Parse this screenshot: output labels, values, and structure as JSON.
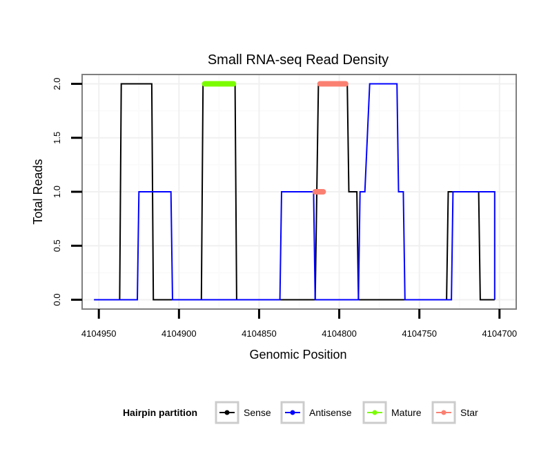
{
  "chart_data": {
    "type": "line",
    "title": "Small RNA-seq Read Density",
    "xlabel": "Genomic Position",
    "ylabel": "Total Reads",
    "x_reversed": true,
    "xlim": [
      4104960,
      4104690
    ],
    "ylim": [
      -0.08,
      2.08
    ],
    "x_ticks": [
      4104950,
      4104900,
      4104850,
      4104800,
      4104750,
      4104700
    ],
    "x_tick_labels": [
      "4104950",
      "4104900",
      "4104850",
      "4104800",
      "4104750",
      "4104700"
    ],
    "y_ticks": [
      0.0,
      0.5,
      1.0,
      1.5,
      2.0
    ],
    "y_tick_labels": [
      "0.0",
      "0.5",
      "1.0",
      "1.5",
      "2.0"
    ],
    "grid": true,
    "series": [
      {
        "name": "Sense",
        "color": "#000000",
        "points": [
          [
            4104953,
            0
          ],
          [
            4104937,
            0
          ],
          [
            4104936,
            2
          ],
          [
            4104917,
            2
          ],
          [
            4104916,
            0
          ],
          [
            4104886,
            0
          ],
          [
            4104885,
            2
          ],
          [
            4104865,
            2
          ],
          [
            4104864,
            0
          ],
          [
            4104815,
            0
          ],
          [
            4104813,
            2
          ],
          [
            4104795,
            2
          ],
          [
            4104794,
            1
          ],
          [
            4104789,
            1
          ],
          [
            4104788,
            0
          ],
          [
            4104733,
            0
          ],
          [
            4104732,
            1
          ],
          [
            4104713,
            1
          ],
          [
            4104712,
            0
          ],
          [
            4104703,
            0
          ]
        ]
      },
      {
        "name": "Antisense",
        "color": "#0000ff",
        "points": [
          [
            4104953,
            0
          ],
          [
            4104926,
            0
          ],
          [
            4104925,
            1
          ],
          [
            4104905,
            1
          ],
          [
            4104904,
            0
          ],
          [
            4104837,
            0
          ],
          [
            4104836,
            1
          ],
          [
            4104816,
            1
          ],
          [
            4104815,
            0
          ],
          [
            4104788,
            0
          ],
          [
            4104787,
            1
          ],
          [
            4104784,
            1
          ],
          [
            4104781,
            2
          ],
          [
            4104764,
            2
          ],
          [
            4104763,
            1
          ],
          [
            4104760,
            1
          ],
          [
            4104759,
            0
          ],
          [
            4104730,
            0
          ],
          [
            4104729,
            1
          ],
          [
            4104703,
            1
          ],
          [
            4104703,
            0
          ]
        ]
      }
    ],
    "highlights": [
      {
        "name": "Mature",
        "color": "#7cfc00",
        "x_start": 4104884,
        "x_end": 4104866,
        "y": 2.0
      },
      {
        "name": "Star",
        "color": "#fa8072",
        "x_start": 4104812,
        "x_end": 4104796,
        "y": 2.0
      },
      {
        "name": "Star",
        "color": "#fa8072",
        "x_start": 4104815,
        "x_end": 4104810,
        "y": 1.0
      }
    ],
    "legend": {
      "title": "Hairpin partition",
      "position": "bottom",
      "entries": [
        {
          "label": "Sense",
          "color": "#000000"
        },
        {
          "label": "Antisense",
          "color": "#0000ff"
        },
        {
          "label": "Mature",
          "color": "#7cfc00"
        },
        {
          "label": "Star",
          "color": "#fa8072"
        }
      ]
    }
  }
}
